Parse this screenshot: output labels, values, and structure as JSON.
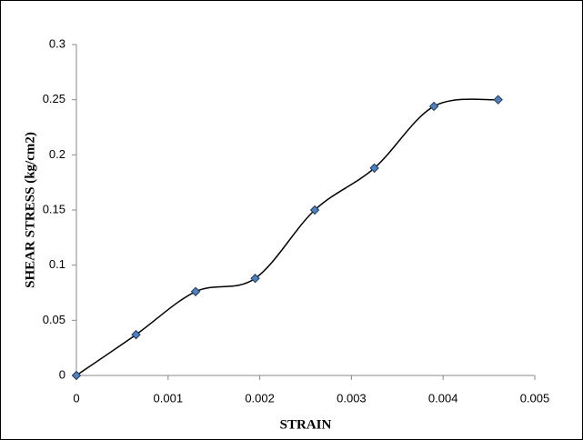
{
  "chart_data": {
    "type": "scatter-smooth",
    "x": [
      0,
      0.00065,
      0.0013,
      0.00195,
      0.0026,
      0.00325,
      0.0039,
      0.0046
    ],
    "series": [
      {
        "values": [
          0,
          0.037,
          0.076,
          0.088,
          0.15,
          0.188,
          0.244,
          0.25
        ],
        "color": "#000000",
        "marker_color": "#4f81bd"
      }
    ],
    "xlabel": "STRAIN",
    "ylabel": "SHEAR STRESS (kg/cm2)",
    "xlim": [
      0,
      0.005
    ],
    "xticks": [
      0,
      0.001,
      0.002,
      0.003,
      0.004,
      0.005
    ],
    "ylim": [
      0,
      0.3
    ],
    "yticks": [
      0,
      0.05,
      0.1,
      0.15,
      0.2,
      0.25,
      0.3
    ]
  }
}
